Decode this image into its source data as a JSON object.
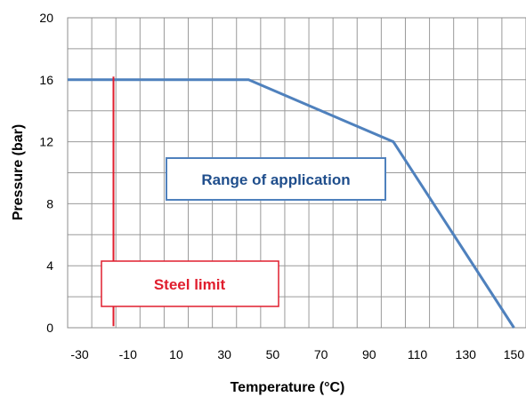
{
  "chart_data": {
    "type": "line",
    "title": "",
    "xlabel": "Temperature (°C)",
    "ylabel": "Pressure (bar)",
    "xlim": [
      -35,
      155
    ],
    "ylim": [
      0,
      20
    ],
    "grid": true,
    "x_ticks": [
      -30,
      -10,
      10,
      30,
      50,
      70,
      90,
      110,
      130,
      150
    ],
    "x_tick_labels": [
      "-30",
      "-10",
      "10",
      "30",
      "50",
      "70",
      "90",
      "110",
      "130",
      "150"
    ],
    "y_ticks": [
      0,
      4,
      8,
      12,
      16,
      20
    ],
    "y_tick_labels": [
      "0",
      "4",
      "8",
      "12",
      "16",
      "20"
    ],
    "series": [
      {
        "color": "#4f81bd",
        "points": [
          [
            -35,
            16
          ],
          [
            40,
            16
          ],
          [
            100,
            12
          ],
          [
            150,
            0
          ]
        ]
      },
      {
        "color": "#e01e2e",
        "points": [
          [
            -16,
            16.2
          ],
          [
            -16,
            0.1
          ]
        ]
      }
    ],
    "annotations": [
      {
        "text": "Range of application",
        "color": "#1f4e8c",
        "border": "#4f81bd"
      },
      {
        "text": "Steel limit",
        "color": "#e01e2e",
        "border": "#e01e2e"
      }
    ]
  }
}
